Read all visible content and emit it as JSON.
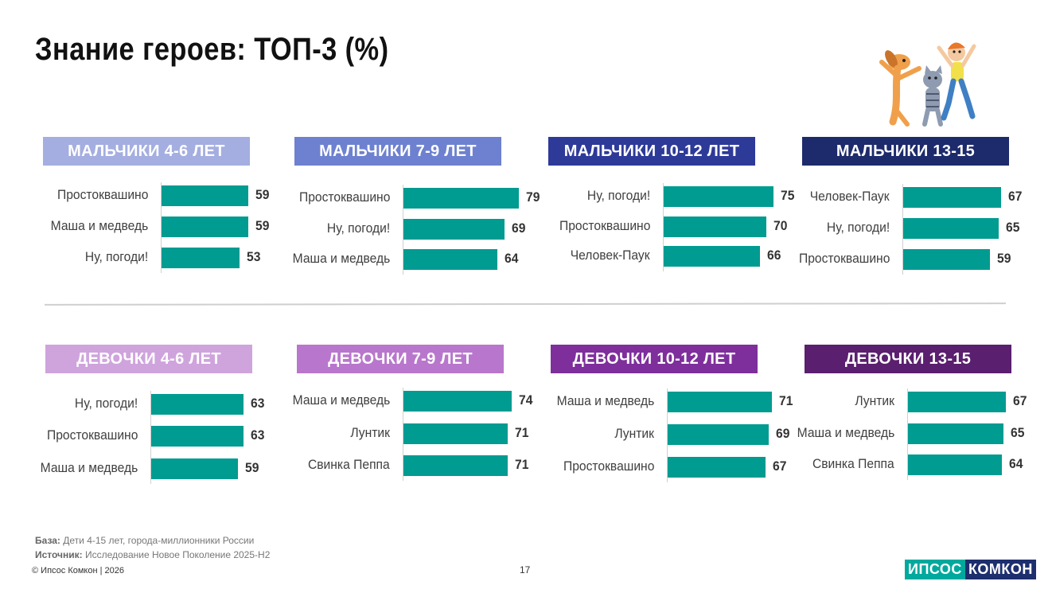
{
  "title": "Знание героев: ТОП-3 (%)",
  "bar_color": "#009b91",
  "chart_data": [
    {
      "type": "bar",
      "orientation": "horizontal",
      "title": "МАЛЬЧИКИ 4-6 ЛЕТ",
      "header_color": "#a4aee0",
      "categories": [
        "Простоквашино",
        "Маша и медведь",
        "Ну, погоди!"
      ],
      "values": [
        59,
        59,
        53
      ]
    },
    {
      "type": "bar",
      "orientation": "horizontal",
      "title": "МАЛЬЧИКИ 7-9 ЛЕТ",
      "header_color": "#6e81d0",
      "categories": [
        "Простоквашино",
        "Ну, погоди!",
        "Маша и медведь"
      ],
      "values": [
        79,
        69,
        64
      ]
    },
    {
      "type": "bar",
      "orientation": "horizontal",
      "title": "МАЛЬЧИКИ 10-12 ЛЕТ",
      "header_color": "#2e3a98",
      "categories": [
        "Ну, погоди!",
        "Простоквашино",
        "Человек-Паук"
      ],
      "values": [
        75,
        70,
        66
      ]
    },
    {
      "type": "bar",
      "orientation": "horizontal",
      "title": "МАЛЬЧИКИ 13-15",
      "header_color": "#1d2a6b",
      "categories": [
        "Человек-Паук",
        "Ну, погоди!",
        "Простоквашино"
      ],
      "values": [
        67,
        65,
        59
      ]
    },
    {
      "type": "bar",
      "orientation": "horizontal",
      "title": "ДЕВОЧКИ 4-6 ЛЕТ",
      "header_color": "#cfa4dd",
      "categories": [
        "Ну, погоди!",
        "Простоквашино",
        "Маша и медведь"
      ],
      "values": [
        63,
        63,
        59
      ]
    },
    {
      "type": "bar",
      "orientation": "horizontal",
      "title": "ДЕВОЧКИ 7-9 ЛЕТ",
      "header_color": "#b877cc",
      "categories": [
        "Маша и медведь",
        "Лунтик",
        "Свинка Пеппа"
      ],
      "values": [
        74,
        71,
        71
      ]
    },
    {
      "type": "bar",
      "orientation": "horizontal",
      "title": "ДЕВОЧКИ 10-12 ЛЕТ",
      "header_color": "#7e2f9c",
      "categories": [
        "Маша и медведь",
        "Лунтик",
        "Простоквашино"
      ],
      "values": [
        71,
        69,
        67
      ]
    },
    {
      "type": "bar",
      "orientation": "horizontal",
      "title": "ДЕВОЧКИ 13-15",
      "header_color": "#5a1f6e",
      "categories": [
        "Лунтик",
        "Маша и медведь",
        "Свинка Пеппа"
      ],
      "values": [
        67,
        65,
        64
      ]
    }
  ],
  "footer": {
    "base_label": "База:",
    "base_text": "Дети 4-15 лет, города-миллионники России",
    "source_label": "Источник:",
    "source_text": "Исследование Новое Поколение 2025-Н2",
    "copyright": "© Ипсос Комкон | 2026",
    "page_number": "17"
  },
  "logo": {
    "part1": "ИПСОС",
    "part2": "КОМКОН"
  }
}
